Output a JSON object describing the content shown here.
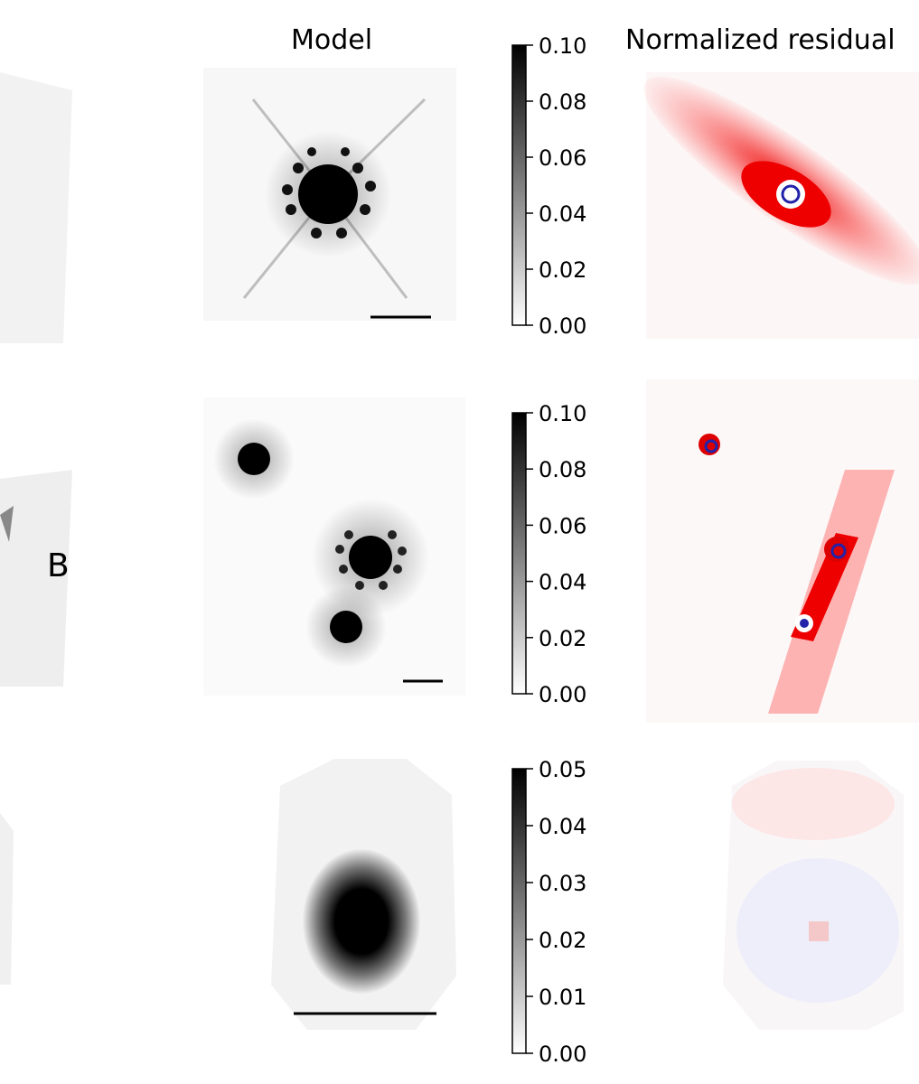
{
  "columns": [
    "Model",
    "Normalized residual"
  ],
  "labels": [
    "B"
  ],
  "colorbars": [
    {
      "lim": [
        0,
        0.1
      ],
      "ticks": [
        {
          "value": 0,
          "label": "0.00"
        },
        {
          "value": 0.02,
          "label": "0.02"
        },
        {
          "value": 0.04,
          "label": "0.04"
        },
        {
          "value": 0.06,
          "label": "0.06"
        },
        {
          "value": 0.08,
          "label": "0.08"
        },
        {
          "value": 0.1,
          "label": "0.10"
        }
      ]
    },
    {
      "lim": [
        0,
        0.1
      ],
      "ticks": [
        {
          "value": 0,
          "label": "0.00"
        },
        {
          "value": 0.02,
          "label": "0.02"
        },
        {
          "value": 0.04,
          "label": "0.04"
        },
        {
          "value": 0.06,
          "label": "0.06"
        },
        {
          "value": 0.08,
          "label": "0.08"
        },
        {
          "value": 0.1,
          "label": "0.10"
        }
      ]
    },
    {
      "lim": [
        0,
        0.05
      ],
      "ticks": [
        {
          "value": 0,
          "label": "0.00"
        },
        {
          "value": 0.01,
          "label": "0.01"
        },
        {
          "value": 0.02,
          "label": "0.02"
        },
        {
          "value": 0.03,
          "label": "0.03"
        },
        {
          "value": 0.04,
          "label": "0.04"
        },
        {
          "value": 0.05,
          "label": "0.05"
        }
      ]
    }
  ]
}
